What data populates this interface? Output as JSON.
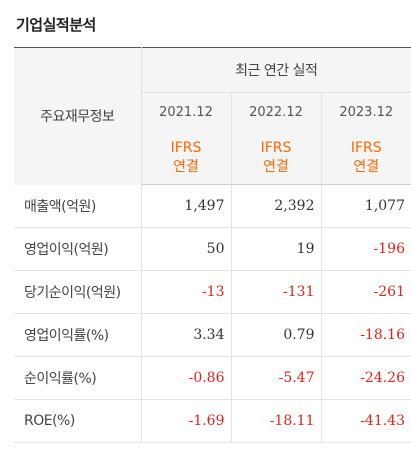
{
  "title": "기업실적분석",
  "header": {
    "label_col": "주요재무정보",
    "group": "최근 연간 실적",
    "years": [
      "2021.12",
      "2022.12",
      "2023.12"
    ],
    "standard_line1": "IFRS",
    "standard_line2": "연결"
  },
  "rows": [
    {
      "label": "매출액(억원)",
      "values": [
        "1,497",
        "2,392",
        "1,077"
      ]
    },
    {
      "label": "영업이익(억원)",
      "values": [
        "50",
        "19",
        "-196"
      ]
    },
    {
      "label": "당기순이익(억원)",
      "values": [
        "-13",
        "-131",
        "-261"
      ]
    },
    {
      "label": "영업이익률(%)",
      "values": [
        "3.34",
        "0.79",
        "-18.16"
      ]
    },
    {
      "label": "순이익률(%)",
      "values": [
        "-0.86",
        "-5.47",
        "-24.26"
      ]
    },
    {
      "label": "ROE(%)",
      "values": [
        "-1.69",
        "-18.11",
        "-41.43"
      ]
    }
  ],
  "colors": {
    "negative": "#e2231a",
    "standard": "#ff6600"
  }
}
